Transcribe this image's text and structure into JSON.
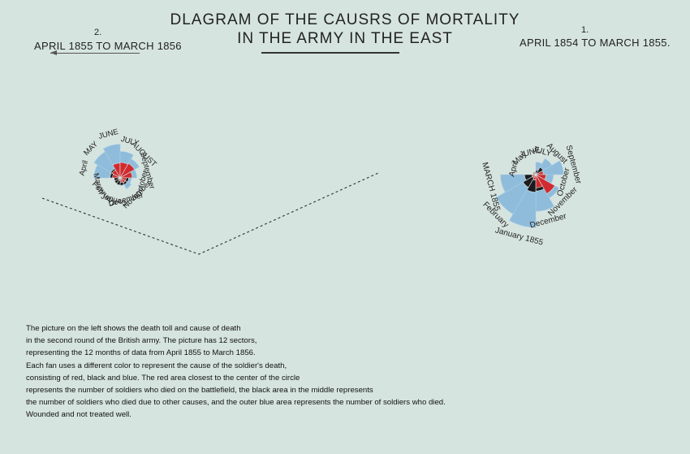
{
  "title": {
    "line1": "DLAGRAM OF THE CAUSRS OF MORTALITY",
    "line2": "IN THE ARMY IN THE EAST"
  },
  "left_diagram": {
    "number": "2.",
    "period": "APRIL 1855 TO MARCH 1856"
  },
  "right_diagram": {
    "number": "1.",
    "period": "APRIL 1854 TO MARCH 1855."
  },
  "description": [
    "The picture on the left shows the death toll and cause of death",
    "in the second round of the British army. The picture has 12 sectors,",
    "representing the 12 months of data from April 1855 to March 1856.",
    "Each fan uses a different color to represent the cause of the soldier's death,",
    "consisting of red, black and blue. The red area closest to the center of the circle",
    "represents the number of soldiers who died on the battlefield, the black area in the middle represents",
    "the number of soldiers who died due to other causes, and the outer blue area represents the number of soldiers who died.",
    "Wounded and not treated well."
  ],
  "colors": {
    "background": "#d6e4e0",
    "blue": "#8fbcdb",
    "red": "#d12a2f",
    "black": "#1c1a1d"
  },
  "chart_data": [
    {
      "type": "rose",
      "title": "APRIL 1854 TO MARCH 1855.",
      "categories": [
        "April",
        "May",
        "JUNE",
        "JULY",
        "August",
        "September",
        "October",
        "November",
        "December",
        "January 1855",
        "February",
        "MARCH 1855"
      ],
      "series": [
        {
          "name": "blue",
          "values": [
            0,
            1,
            5,
            150,
            330,
            740,
            300,
            700,
            1300,
            2700,
            2000,
            1200
          ]
        },
        {
          "name": "black",
          "values": [
            5,
            9,
            6,
            20,
            70,
            30,
            45,
            150,
            260,
            300,
            210,
            120
          ]
        },
        {
          "name": "red",
          "values": [
            0,
            0,
            0,
            0,
            2,
            55,
            100,
            470,
            170,
            30,
            15,
            15
          ]
        }
      ]
    },
    {
      "type": "rose",
      "title": "APRIL 1855 TO MARCH 1856",
      "categories": [
        "April",
        "MAY",
        "JUNE",
        "JULY",
        "AUGUST",
        "September",
        "October",
        "November",
        "December",
        "January",
        "February",
        "March"
      ],
      "series": [
        {
          "name": "blue",
          "values": [
            470,
            620,
            780,
            480,
            330,
            190,
            85,
            110,
            45,
            25,
            20,
            15
          ]
        },
        {
          "name": "black",
          "values": [
            70,
            80,
            90,
            130,
            100,
            80,
            50,
            45,
            40,
            35,
            30,
            25
          ]
        },
        {
          "name": "red",
          "values": [
            40,
            60,
            150,
            165,
            190,
            100,
            25,
            25,
            15,
            5,
            2,
            2
          ]
        }
      ]
    }
  ]
}
